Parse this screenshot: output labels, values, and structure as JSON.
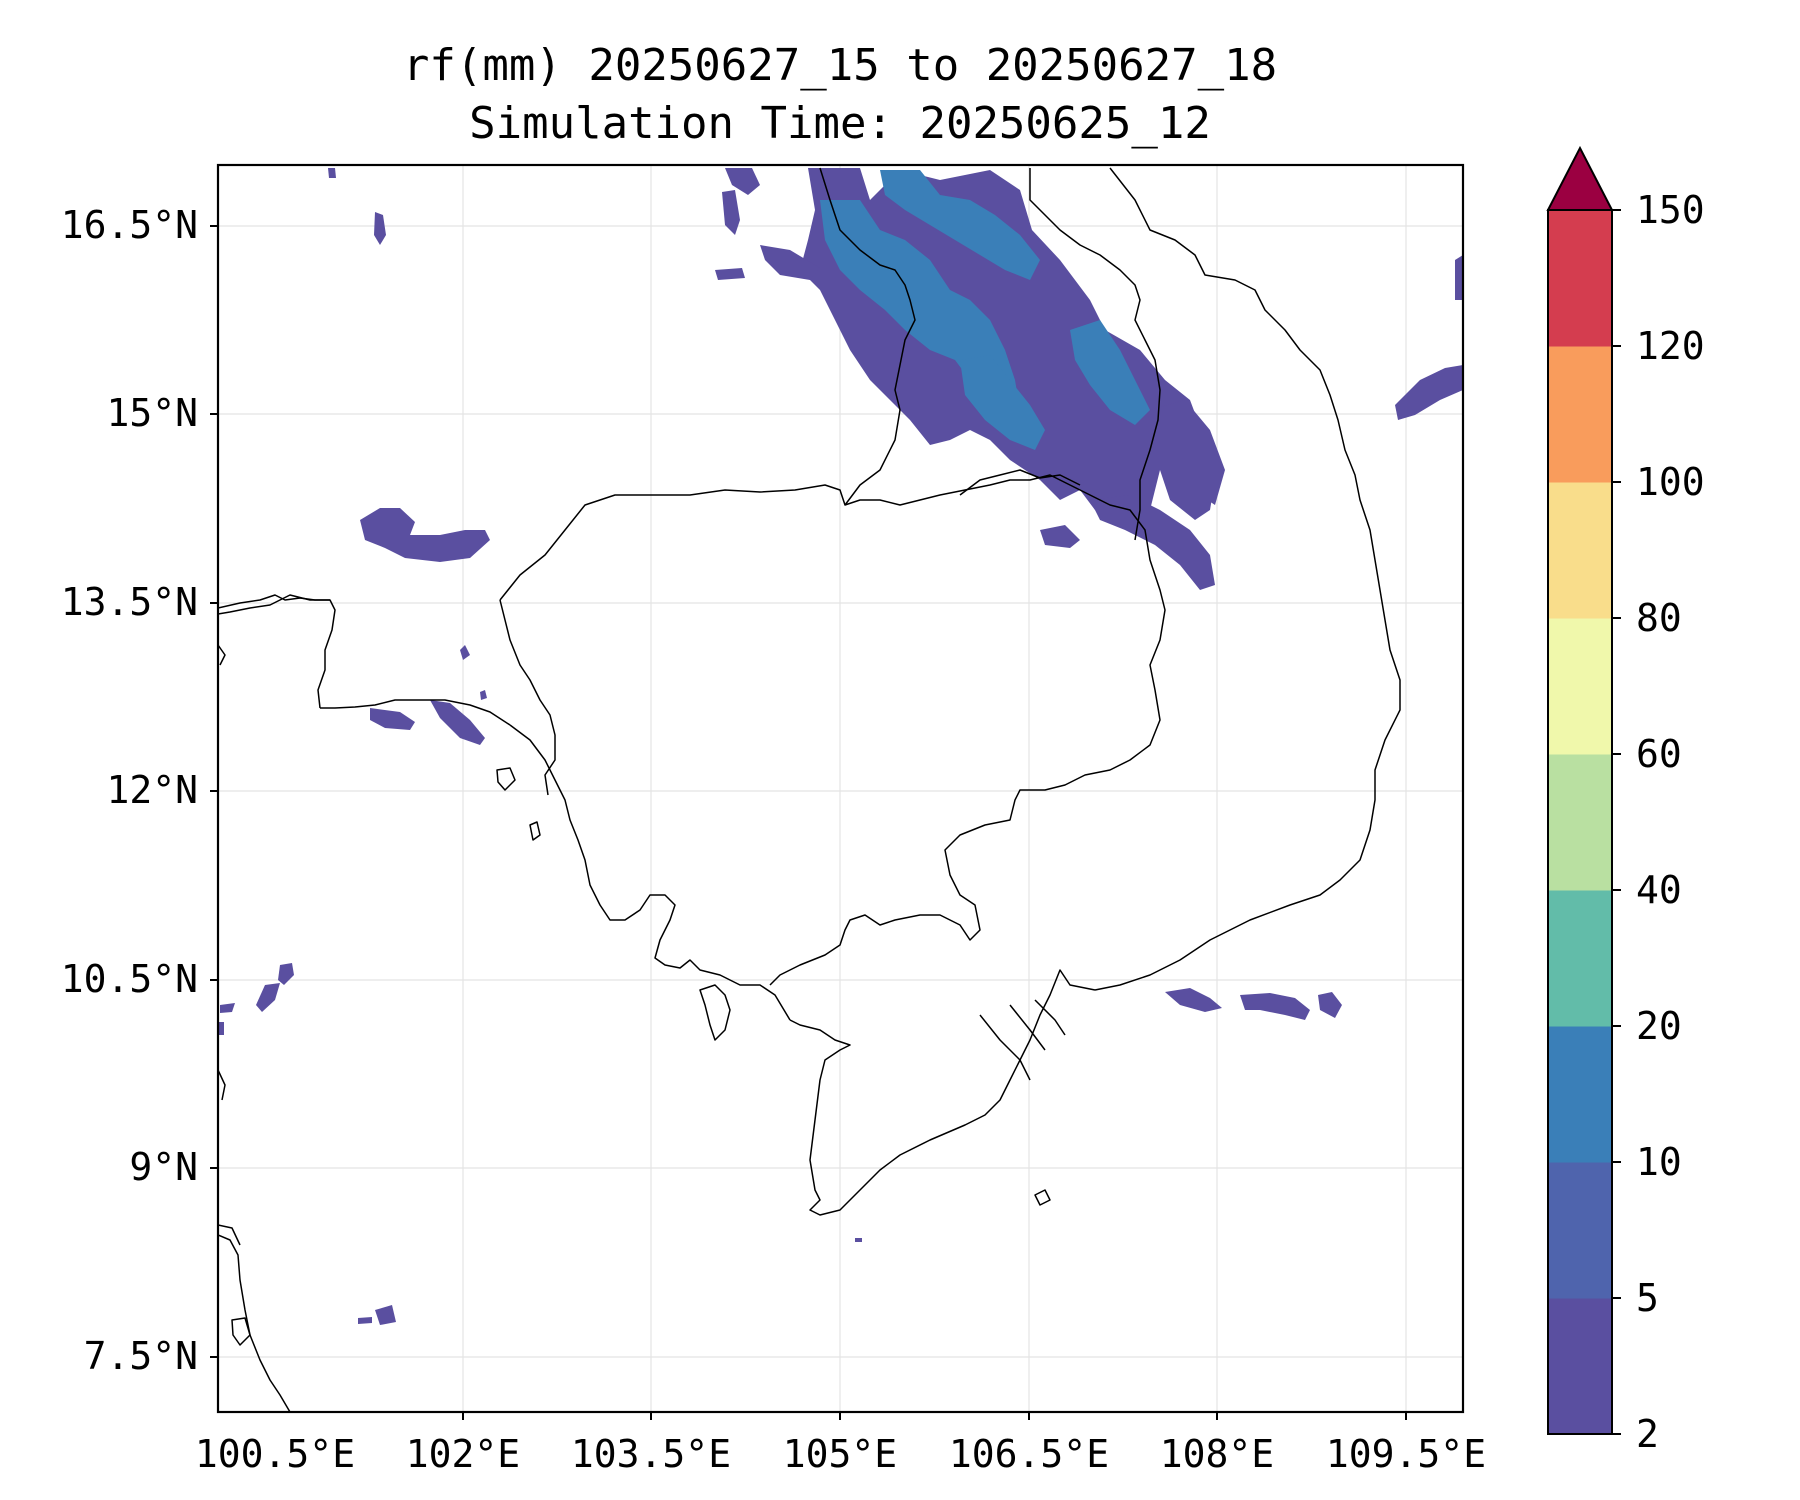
{
  "title": {
    "line1": "rf(mm) 20250627_15 to 20250627_18",
    "line2": "Simulation Time: 20250625_12"
  },
  "map": {
    "x_ticks": [
      "100.5°E",
      "102°E",
      "103.5°E",
      "105°E",
      "106.5°E",
      "108°E",
      "109.5°E"
    ],
    "y_ticks": [
      "16.5°N",
      "15°N",
      "13.5°N",
      "12°N",
      "10.5°N",
      "9°N",
      "7.5°N"
    ],
    "lon_range": [
      100.5,
      110.3
    ],
    "lat_range": [
      7.1,
      17.0
    ],
    "grid": true
  },
  "colorbar": {
    "levels": [
      "2",
      "5",
      "10",
      "20",
      "40",
      "60",
      "80",
      "100",
      "120",
      "150"
    ],
    "colors": [
      "#5a4fa0",
      "#4f64ad",
      "#3a7fb8",
      "#62bca9",
      "#b9e0a1",
      "#f0f8ab",
      "#f9dd8b",
      "#f99c5c",
      "#d43d4f"
    ],
    "extend_color": "#9b0041"
  },
  "rain_colors": {
    "light": "#5a4fa0",
    "moderate": "#4f64ad",
    "heavy": "#3a7fb8"
  }
}
